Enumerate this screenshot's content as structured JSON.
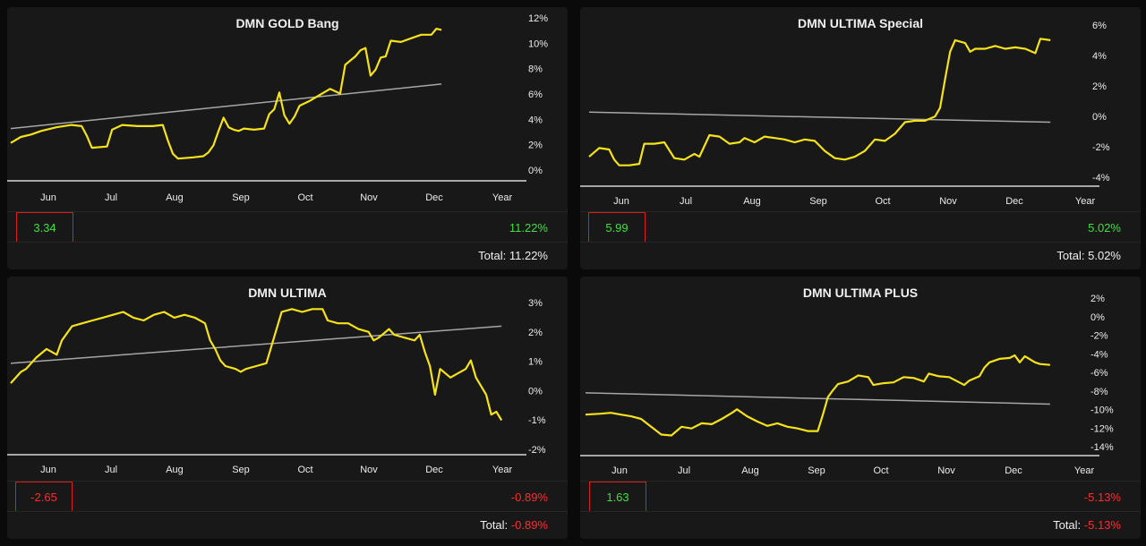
{
  "colors": {
    "background": "#0a0a0a",
    "panel": "#181818",
    "series_line": "#f5e21b",
    "trend_line": "#a6a6a6",
    "positive": "#3ee03e",
    "negative": "#ff2d2d",
    "box_border": "#d81d1d"
  },
  "chart_data": [
    {
      "id": "gold-bang",
      "type": "line",
      "title": "DMN GOLD Bang",
      "categories": [
        "Jun",
        "Jul",
        "Aug",
        "Sep",
        "Oct",
        "Nov",
        "Dec",
        "Year"
      ],
      "yticks": [
        "12%",
        "10%",
        "8%",
        "6%",
        "4%",
        "2%",
        "0%"
      ],
      "ylim": [
        -0.8,
        12.6
      ],
      "x_domain": [
        0,
        100
      ],
      "series": [
        {
          "values": [
            [
              0,
              2.2
            ],
            [
              2,
              2.7
            ],
            [
              4,
              2.9
            ],
            [
              6,
              3.2
            ],
            [
              9,
              3.5
            ],
            [
              12,
              3.7
            ],
            [
              14,
              3.6
            ],
            [
              15,
              2.8
            ],
            [
              16,
              1.8
            ],
            [
              19,
              1.9
            ],
            [
              20,
              3.3
            ],
            [
              22,
              3.7
            ],
            [
              25,
              3.6
            ],
            [
              28,
              3.6
            ],
            [
              30,
              3.7
            ],
            [
              31,
              2.4
            ],
            [
              32,
              1.3
            ],
            [
              33,
              0.9
            ],
            [
              36,
              1.0
            ],
            [
              38,
              1.1
            ],
            [
              39,
              1.4
            ],
            [
              40,
              2.0
            ],
            [
              41,
              3.2
            ],
            [
              42,
              4.3
            ],
            [
              43,
              3.5
            ],
            [
              44,
              3.3
            ],
            [
              45,
              3.2
            ],
            [
              46,
              3.4
            ],
            [
              48,
              3.3
            ],
            [
              50,
              3.4
            ],
            [
              51,
              4.6
            ],
            [
              52,
              5.0
            ],
            [
              53,
              6.4
            ],
            [
              54,
              4.5
            ],
            [
              55,
              3.8
            ],
            [
              56,
              4.4
            ],
            [
              57,
              5.3
            ],
            [
              59,
              5.7
            ],
            [
              61,
              6.2
            ],
            [
              63,
              6.7
            ],
            [
              64,
              6.5
            ],
            [
              65,
              6.3
            ],
            [
              66,
              8.7
            ],
            [
              68,
              9.4
            ],
            [
              69,
              9.9
            ],
            [
              70,
              10.1
            ],
            [
              71,
              7.8
            ],
            [
              72,
              8.3
            ],
            [
              73,
              9.3
            ],
            [
              74,
              9.4
            ],
            [
              75,
              10.7
            ],
            [
              77,
              10.6
            ],
            [
              79,
              10.9
            ],
            [
              81,
              11.2
            ],
            [
              83,
              11.2
            ],
            [
              84,
              11.7
            ],
            [
              85,
              11.6
            ]
          ]
        }
      ],
      "trend": [
        [
          0,
          3.4
        ],
        [
          85,
          7.1
        ]
      ],
      "value_box": "3.34",
      "value_sign": "pos",
      "percent": "11.22%",
      "percent_sign": "pos",
      "total_label": "Total:",
      "total_value": "11.22%"
    },
    {
      "id": "ultima-special",
      "type": "line",
      "title": "DMN ULTIMA Special",
      "categories": [
        "Jun",
        "Jul",
        "Aug",
        "Sep",
        "Oct",
        "Nov",
        "Dec",
        "Year"
      ],
      "yticks": [
        "6%",
        "4%",
        "2%",
        "0%",
        "-2%",
        "-4%"
      ],
      "ylim": [
        -4.6,
        6.6
      ],
      "x_domain": [
        0,
        100
      ],
      "series": [
        {
          "values": [
            [
              0,
              -2.8
            ],
            [
              2,
              -2.2
            ],
            [
              4,
              -2.3
            ],
            [
              5,
              -3.0
            ],
            [
              6,
              -3.4
            ],
            [
              8,
              -3.4
            ],
            [
              10,
              -3.3
            ],
            [
              11,
              -1.9
            ],
            [
              13,
              -1.9
            ],
            [
              15,
              -1.8
            ],
            [
              17,
              -2.9
            ],
            [
              19,
              -3.0
            ],
            [
              21,
              -2.6
            ],
            [
              22,
              -2.8
            ],
            [
              24,
              -1.3
            ],
            [
              26,
              -1.4
            ],
            [
              28,
              -1.9
            ],
            [
              30,
              -1.8
            ],
            [
              31,
              -1.5
            ],
            [
              33,
              -1.8
            ],
            [
              35,
              -1.4
            ],
            [
              37,
              -1.5
            ],
            [
              39,
              -1.6
            ],
            [
              41,
              -1.8
            ],
            [
              43,
              -1.6
            ],
            [
              45,
              -1.7
            ],
            [
              47,
              -2.4
            ],
            [
              49,
              -2.9
            ],
            [
              51,
              -3.0
            ],
            [
              53,
              -2.8
            ],
            [
              55,
              -2.4
            ],
            [
              57,
              -1.6
            ],
            [
              59,
              -1.7
            ],
            [
              61,
              -1.2
            ],
            [
              63,
              -0.4
            ],
            [
              65,
              -0.3
            ],
            [
              67,
              -0.3
            ],
            [
              69,
              0.0
            ],
            [
              70,
              0.6
            ],
            [
              71,
              2.6
            ],
            [
              72,
              4.5
            ],
            [
              73,
              5.3
            ],
            [
              75,
              5.1
            ],
            [
              76,
              4.5
            ],
            [
              77,
              4.7
            ],
            [
              79,
              4.7
            ],
            [
              81,
              4.9
            ],
            [
              83,
              4.7
            ],
            [
              85,
              4.8
            ],
            [
              87,
              4.7
            ],
            [
              89,
              4.4
            ],
            [
              90,
              5.4
            ],
            [
              92,
              5.3
            ]
          ]
        }
      ],
      "trend": [
        [
          0,
          0.3
        ],
        [
          92,
          -0.4
        ]
      ],
      "value_box": "5.99",
      "value_sign": "pos",
      "percent": "5.02%",
      "percent_sign": "pos",
      "total_label": "Total:",
      "total_value": "5.02%"
    },
    {
      "id": "ultima",
      "type": "line",
      "title": "DMN ULTIMA",
      "categories": [
        "Jun",
        "Jul",
        "Aug",
        "Sep",
        "Oct",
        "Nov",
        "Dec",
        "Year"
      ],
      "yticks": [
        "3%",
        "2%",
        "1%",
        "0%",
        "-1%",
        "-2%"
      ],
      "ylim": [
        -2.35,
        3.3
      ],
      "x_domain": [
        0,
        100
      ],
      "series": [
        {
          "values": [
            [
              0,
              0.0
            ],
            [
              2,
              0.4
            ],
            [
              3,
              0.5
            ],
            [
              5,
              0.9
            ],
            [
              7,
              1.2
            ],
            [
              9,
              1.0
            ],
            [
              10,
              1.5
            ],
            [
              12,
              2.0
            ],
            [
              14,
              2.1
            ],
            [
              16,
              2.2
            ],
            [
              18,
              2.3
            ],
            [
              20,
              2.4
            ],
            [
              22,
              2.5
            ],
            [
              24,
              2.3
            ],
            [
              26,
              2.2
            ],
            [
              28,
              2.4
            ],
            [
              30,
              2.5
            ],
            [
              32,
              2.3
            ],
            [
              34,
              2.4
            ],
            [
              36,
              2.3
            ],
            [
              38,
              2.1
            ],
            [
              39,
              1.5
            ],
            [
              40,
              1.2
            ],
            [
              41,
              0.8
            ],
            [
              42,
              0.6
            ],
            [
              44,
              0.5
            ],
            [
              45,
              0.4
            ],
            [
              46,
              0.5
            ],
            [
              48,
              0.6
            ],
            [
              50,
              0.7
            ],
            [
              52,
              1.9
            ],
            [
              53,
              2.5
            ],
            [
              55,
              2.6
            ],
            [
              57,
              2.5
            ],
            [
              59,
              2.6
            ],
            [
              61,
              2.6
            ],
            [
              62,
              2.2
            ],
            [
              64,
              2.1
            ],
            [
              66,
              2.1
            ],
            [
              68,
              1.9
            ],
            [
              70,
              1.8
            ],
            [
              71,
              1.5
            ],
            [
              72,
              1.6
            ],
            [
              74,
              1.9
            ],
            [
              75,
              1.7
            ],
            [
              77,
              1.6
            ],
            [
              79,
              1.5
            ],
            [
              80,
              1.7
            ],
            [
              81,
              1.1
            ],
            [
              82,
              0.6
            ],
            [
              83,
              -0.4
            ],
            [
              84,
              0.5
            ],
            [
              86,
              0.2
            ],
            [
              87,
              0.3
            ],
            [
              89,
              0.5
            ],
            [
              90,
              0.8
            ],
            [
              91,
              0.2
            ],
            [
              92,
              -0.1
            ],
            [
              93,
              -0.4
            ],
            [
              94,
              -1.1
            ],
            [
              95,
              -1.0
            ],
            [
              96,
              -1.3
            ]
          ]
        }
      ],
      "trend": [
        [
          0,
          0.7
        ],
        [
          96,
          2.0
        ]
      ],
      "value_box": "-2.65",
      "value_sign": "neg",
      "percent": "-0.89%",
      "percent_sign": "neg",
      "total_label": "Total:",
      "total_value": "-0.89%"
    },
    {
      "id": "ultima-plus",
      "type": "line",
      "title": "DMN ULTIMA PLUS",
      "categories": [
        "Jun",
        "Jul",
        "Aug",
        "Sep",
        "Oct",
        "Nov",
        "Dec",
        "Year"
      ],
      "yticks": [
        "2%",
        "0%",
        "-2%",
        "-4%",
        "-6%",
        "-8%",
        "-10%",
        "-12%",
        "-14%"
      ],
      "ylim": [
        -15.3,
        3.2
      ],
      "x_domain": [
        0,
        100
      ],
      "series": [
        {
          "values": [
            [
              0,
              -11.0
            ],
            [
              3,
              -10.9
            ],
            [
              5,
              -10.8
            ],
            [
              7,
              -11.0
            ],
            [
              9,
              -11.2
            ],
            [
              11,
              -11.5
            ],
            [
              13,
              -12.4
            ],
            [
              15,
              -13.3
            ],
            [
              17,
              -13.4
            ],
            [
              19,
              -12.4
            ],
            [
              21,
              -12.6
            ],
            [
              23,
              -12.0
            ],
            [
              25,
              -12.1
            ],
            [
              27,
              -11.5
            ],
            [
              29,
              -10.8
            ],
            [
              30,
              -10.4
            ],
            [
              32,
              -11.2
            ],
            [
              34,
              -11.8
            ],
            [
              36,
              -12.3
            ],
            [
              38,
              -12.0
            ],
            [
              40,
              -12.4
            ],
            [
              42,
              -12.6
            ],
            [
              44,
              -12.9
            ],
            [
              46,
              -12.9
            ],
            [
              47,
              -11.0
            ],
            [
              48,
              -9.0
            ],
            [
              49,
              -8.2
            ],
            [
              50,
              -7.5
            ],
            [
              52,
              -7.2
            ],
            [
              54,
              -6.5
            ],
            [
              56,
              -6.7
            ],
            [
              57,
              -7.6
            ],
            [
              59,
              -7.4
            ],
            [
              61,
              -7.3
            ],
            [
              63,
              -6.7
            ],
            [
              65,
              -6.8
            ],
            [
              67,
              -7.2
            ],
            [
              68,
              -6.3
            ],
            [
              70,
              -6.6
            ],
            [
              72,
              -6.7
            ],
            [
              74,
              -7.3
            ],
            [
              75,
              -7.6
            ],
            [
              76,
              -7.1
            ],
            [
              78,
              -6.6
            ],
            [
              79,
              -5.6
            ],
            [
              80,
              -5.0
            ],
            [
              82,
              -4.6
            ],
            [
              84,
              -4.5
            ],
            [
              85,
              -4.2
            ],
            [
              86,
              -5.0
            ],
            [
              87,
              -4.3
            ],
            [
              89,
              -5.0
            ],
            [
              90,
              -5.2
            ],
            [
              92,
              -5.3
            ]
          ]
        }
      ],
      "trend": [
        [
          0,
          -8.5
        ],
        [
          92,
          -9.8
        ]
      ],
      "value_box": "1.63",
      "value_sign": "pos",
      "percent": "-5.13%",
      "percent_sign": "neg",
      "total_label": "Total:",
      "total_value": "-5.13%"
    }
  ]
}
